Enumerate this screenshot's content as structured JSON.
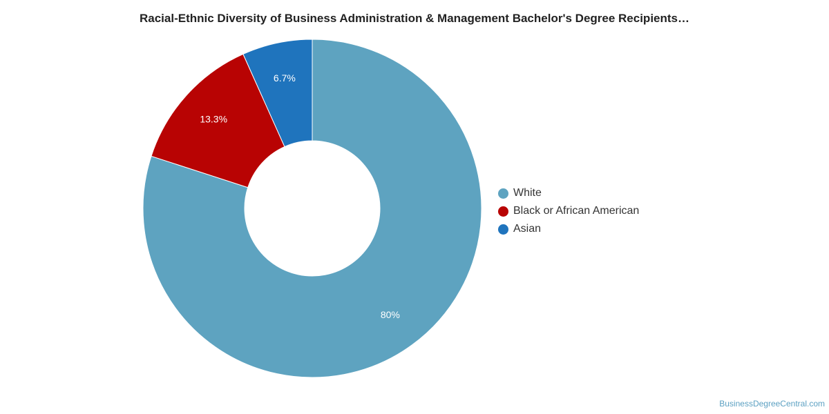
{
  "chart_data": {
    "type": "pie",
    "title": "Racial-Ethnic Diversity of Business Administration & Management Bachelor's Degree Recipients…",
    "donut": true,
    "start_angle": "12 o'clock, clockwise",
    "legend": "right",
    "series": [
      {
        "name": "White",
        "value": 80,
        "label": "80%",
        "color": "#5ea3c0"
      },
      {
        "name": "Black or African American",
        "value": 13.3,
        "label": "13.3%",
        "color": "#b80303"
      },
      {
        "name": "Asian",
        "value": 6.7,
        "label": "6.7%",
        "color": "#1f74bd"
      }
    ]
  },
  "watermark": "BusinessDegreeCentral.com"
}
